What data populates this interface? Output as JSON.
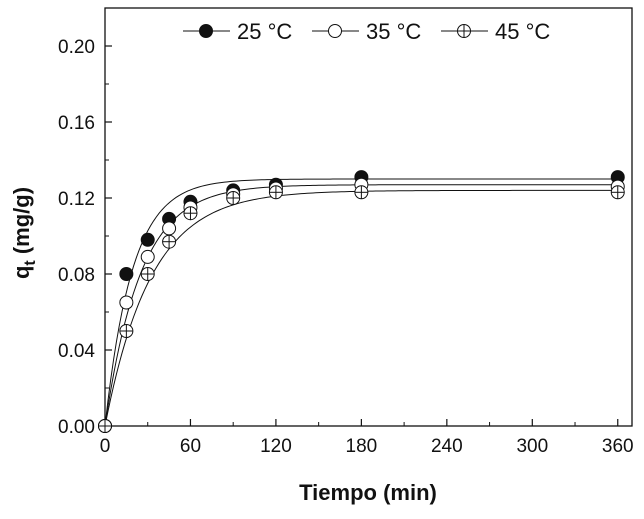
{
  "chart_data": {
    "type": "scatter",
    "title": "",
    "xlabel": "Tiempo (min)",
    "ylabel_main": "q",
    "ylabel_sub": "t",
    "ylabel_unit": " (mg/g)",
    "xlim": [
      0,
      370
    ],
    "ylim": [
      0,
      0.22
    ],
    "xticks": [
      0,
      60,
      120,
      180,
      240,
      300,
      360
    ],
    "xtick_labels": [
      "0",
      "60",
      "120",
      "180",
      "240",
      "300",
      "360"
    ],
    "yticks": [
      0,
      0.04,
      0.08,
      0.12,
      0.16,
      0.2
    ],
    "ytick_labels": [
      "0.00",
      "0.04",
      "0.08",
      "0.12",
      "0.16",
      "0.20"
    ],
    "grid": false,
    "legend_position": "top-right",
    "series": [
      {
        "name": "25 °C",
        "marker": "filled-circle",
        "x": [
          0,
          15,
          30,
          45,
          60,
          90,
          120,
          180,
          360
        ],
        "y": [
          0,
          0.08,
          0.098,
          0.109,
          0.118,
          0.124,
          0.127,
          0.131,
          0.131
        ],
        "fit": {
          "qe": 0.13,
          "k": 0.052
        }
      },
      {
        "name": "35 °C",
        "marker": "open-circle",
        "x": [
          0,
          15,
          30,
          45,
          60,
          90,
          120,
          180,
          360
        ],
        "y": [
          0,
          0.065,
          0.089,
          0.104,
          0.115,
          0.122,
          0.125,
          0.127,
          0.126
        ],
        "fit": {
          "qe": 0.127,
          "k": 0.04
        }
      },
      {
        "name": "45 °C",
        "marker": "crossed-circle",
        "x": [
          0,
          15,
          30,
          45,
          60,
          90,
          120,
          180,
          360
        ],
        "y": [
          0,
          0.05,
          0.08,
          0.097,
          0.112,
          0.12,
          0.123,
          0.123,
          0.123
        ],
        "fit": {
          "qe": 0.124,
          "k": 0.031
        }
      }
    ]
  }
}
